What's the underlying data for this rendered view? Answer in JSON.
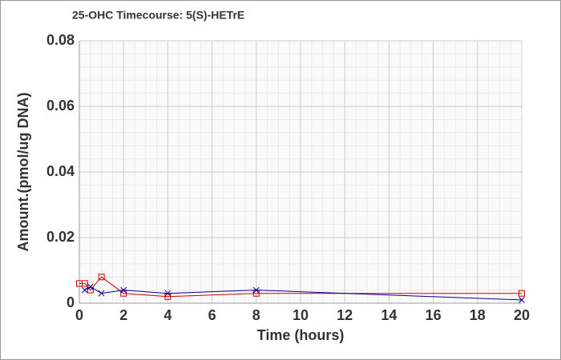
{
  "chart_data": {
    "type": "line",
    "title": "25-OHC Timecourse: 5(S)-HETrE",
    "x_label": "Time (hours)",
    "y_label": "Amount.(pmol/ug DNA)",
    "x": [
      0,
      0.25,
      0.5,
      1,
      2,
      4,
      8,
      20
    ],
    "series": [
      {
        "color": "#cc0000",
        "marker": "square",
        "values": [
          0.006,
          0.006,
          0.004,
          0.008,
          0.003,
          0.002,
          0.003,
          0.003
        ]
      },
      {
        "color": "#000099",
        "marker": "x",
        "values": [
          null,
          0.004,
          0.005,
          0.003,
          0.004,
          0.003,
          0.004,
          0.001
        ]
      }
    ],
    "xlim": [
      0,
      20
    ],
    "xticks": [
      0,
      2,
      4,
      6,
      8,
      10,
      12,
      14,
      16,
      18,
      20
    ],
    "ylim": [
      0,
      0.08
    ],
    "yticks": [
      0,
      0.02,
      0.04,
      0.06,
      0.08
    ],
    "grid": true
  }
}
